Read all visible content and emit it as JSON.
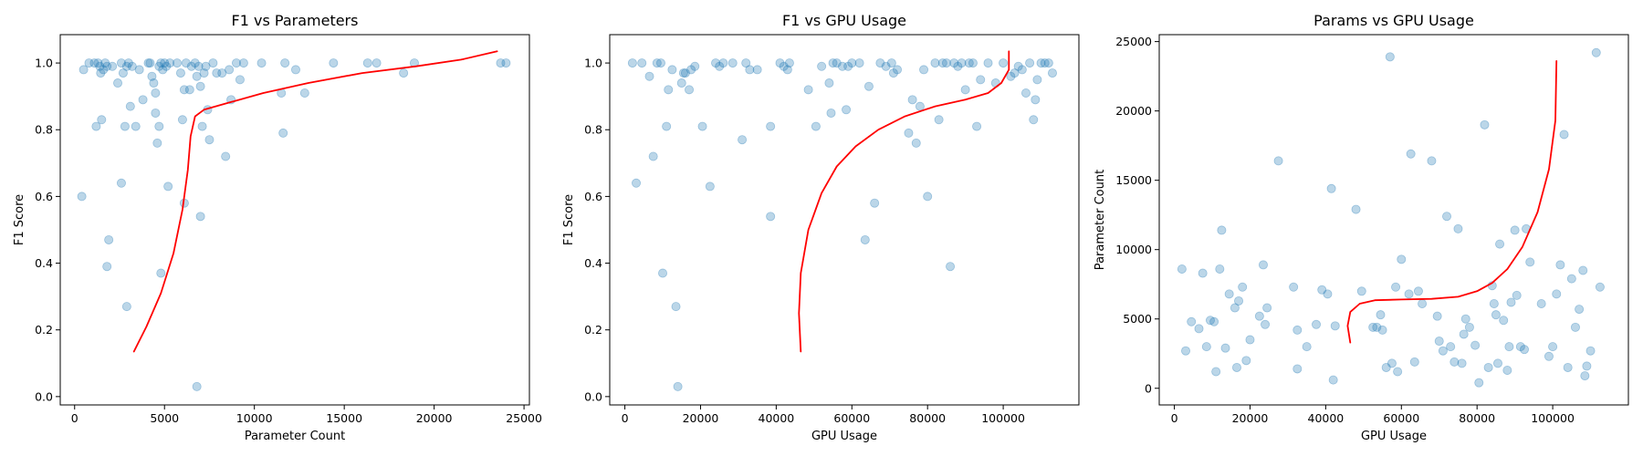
{
  "chart_data": [
    {
      "type": "scatter",
      "title": "F1 vs Parameters",
      "xlabel": "Parameter Count",
      "ylabel": "F1 Score",
      "xlim": [
        -800,
        25300
      ],
      "ylim": [
        -0.025,
        1.085
      ],
      "xticks": [
        0,
        5000,
        10000,
        15000,
        20000,
        25000
      ],
      "yticks": [
        0.0,
        0.2,
        0.4,
        0.6,
        0.8,
        1.0
      ],
      "xtick_labels": [
        "0",
        "5000",
        "10000",
        "15000",
        "20000",
        "25000"
      ],
      "ytick_labels": [
        "0.0",
        "0.2",
        "0.4",
        "0.6",
        "0.8",
        "1.0"
      ],
      "grid": false,
      "point_color": "#1f77b4",
      "point_alpha": 0.3,
      "trend_color": "#ff0000",
      "points": [
        [
          500,
          0.98
        ],
        [
          800,
          1.0
        ],
        [
          1100,
          1.0
        ],
        [
          1200,
          0.81
        ],
        [
          1300,
          1.0
        ],
        [
          1400,
          0.99
        ],
        [
          1450,
          0.97
        ],
        [
          1500,
          0.83
        ],
        [
          1600,
          0.98
        ],
        [
          1700,
          1.0
        ],
        [
          1800,
          0.99
        ],
        [
          2100,
          0.99
        ],
        [
          1900,
          0.47
        ],
        [
          1800,
          0.39
        ],
        [
          400,
          0.6
        ],
        [
          2400,
          0.94
        ],
        [
          2600,
          1.0
        ],
        [
          2700,
          0.97
        ],
        [
          2800,
          0.81
        ],
        [
          2900,
          0.99
        ],
        [
          3000,
          1.0
        ],
        [
          3100,
          0.87
        ],
        [
          3200,
          0.99
        ],
        [
          3400,
          0.81
        ],
        [
          3600,
          0.98
        ],
        [
          3800,
          0.89
        ],
        [
          2600,
          0.64
        ],
        [
          2900,
          0.27
        ],
        [
          4100,
          1.0
        ],
        [
          4200,
          1.0
        ],
        [
          4300,
          0.96
        ],
        [
          4400,
          0.94
        ],
        [
          4500,
          0.91
        ],
        [
          4500,
          0.85
        ],
        [
          4600,
          0.76
        ],
        [
          4700,
          0.81
        ],
        [
          4700,
          0.99
        ],
        [
          4800,
          1.0
        ],
        [
          4900,
          0.98
        ],
        [
          5000,
          1.0
        ],
        [
          5100,
          0.99
        ],
        [
          5300,
          1.0
        ],
        [
          4800,
          0.37
        ],
        [
          5200,
          0.63
        ],
        [
          5700,
          1.0
        ],
        [
          5900,
          0.97
        ],
        [
          6000,
          0.83
        ],
        [
          6100,
          0.92
        ],
        [
          6200,
          1.0
        ],
        [
          6400,
          0.92
        ],
        [
          6500,
          0.99
        ],
        [
          6700,
          1.0
        ],
        [
          6800,
          0.96
        ],
        [
          6900,
          0.99
        ],
        [
          7000,
          0.93
        ],
        [
          7100,
          0.81
        ],
        [
          7200,
          0.97
        ],
        [
          7300,
          0.99
        ],
        [
          7400,
          0.86
        ],
        [
          7500,
          0.77
        ],
        [
          6100,
          0.58
        ],
        [
          7000,
          0.54
        ],
        [
          6800,
          0.03
        ],
        [
          7700,
          1.0
        ],
        [
          7900,
          0.97
        ],
        [
          8200,
          0.97
        ],
        [
          8400,
          0.72
        ],
        [
          8600,
          0.98
        ],
        [
          8700,
          0.89
        ],
        [
          9000,
          1.0
        ],
        [
          9200,
          0.95
        ],
        [
          9400,
          1.0
        ],
        [
          10400,
          1.0
        ],
        [
          11500,
          0.91
        ],
        [
          11600,
          0.79
        ],
        [
          11700,
          1.0
        ],
        [
          12300,
          0.98
        ],
        [
          12800,
          0.91
        ],
        [
          14400,
          1.0
        ],
        [
          16300,
          1.0
        ],
        [
          16800,
          1.0
        ],
        [
          18300,
          0.97
        ],
        [
          18900,
          1.0
        ],
        [
          23700,
          1.0
        ],
        [
          24000,
          1.0
        ]
      ],
      "trend": [
        [
          3300,
          0.135
        ],
        [
          4000,
          0.21
        ],
        [
          4800,
          0.31
        ],
        [
          5500,
          0.43
        ],
        [
          6000,
          0.56
        ],
        [
          6300,
          0.68
        ],
        [
          6450,
          0.78
        ],
        [
          6700,
          0.84
        ],
        [
          7200,
          0.86
        ],
        [
          8500,
          0.88
        ],
        [
          10500,
          0.91
        ],
        [
          13000,
          0.94
        ],
        [
          16000,
          0.97
        ],
        [
          19000,
          0.99
        ],
        [
          21500,
          1.01
        ],
        [
          23500,
          1.035
        ]
      ]
    },
    {
      "type": "scatter",
      "title": "F1 vs GPU Usage",
      "xlabel": "GPU Usage",
      "ylabel": "F1 Score",
      "xlim": [
        -4000,
        120000
      ],
      "ylim": [
        -0.025,
        1.085
      ],
      "xticks": [
        0,
        20000,
        40000,
        60000,
        80000,
        100000
      ],
      "yticks": [
        0.0,
        0.2,
        0.4,
        0.6,
        0.8,
        1.0
      ],
      "xtick_labels": [
        "0",
        "20000",
        "40000",
        "60000",
        "80000",
        "100000"
      ],
      "ytick_labels": [
        "0.0",
        "0.2",
        "0.4",
        "0.6",
        "0.8",
        "1.0"
      ],
      "grid": false,
      "point_color": "#1f77b4",
      "point_alpha": 0.3,
      "trend_color": "#ff0000",
      "points": [
        [
          2000,
          1.0
        ],
        [
          3000,
          0.64
        ],
        [
          4500,
          1.0
        ],
        [
          6500,
          0.96
        ],
        [
          7500,
          0.72
        ],
        [
          8500,
          1.0
        ],
        [
          9500,
          1.0
        ],
        [
          10000,
          0.37
        ],
        [
          11000,
          0.81
        ],
        [
          11500,
          0.92
        ],
        [
          12500,
          0.98
        ],
        [
          13500,
          0.27
        ],
        [
          14000,
          0.03
        ],
        [
          15000,
          0.94
        ],
        [
          15500,
          0.97
        ],
        [
          16000,
          0.97
        ],
        [
          17000,
          0.92
        ],
        [
          17500,
          0.98
        ],
        [
          18500,
          0.99
        ],
        [
          20500,
          0.81
        ],
        [
          22500,
          0.63
        ],
        [
          24000,
          1.0
        ],
        [
          25000,
          0.99
        ],
        [
          26000,
          1.0
        ],
        [
          28500,
          1.0
        ],
        [
          31000,
          0.77
        ],
        [
          32000,
          1.0
        ],
        [
          33000,
          0.98
        ],
        [
          35000,
          0.98
        ],
        [
          38500,
          0.81
        ],
        [
          38500,
          0.54
        ],
        [
          41000,
          1.0
        ],
        [
          42000,
          0.99
        ],
        [
          43000,
          0.98
        ],
        [
          43500,
          1.0
        ],
        [
          48500,
          0.92
        ],
        [
          50500,
          0.81
        ],
        [
          52000,
          0.99
        ],
        [
          54000,
          0.94
        ],
        [
          54500,
          0.85
        ],
        [
          55000,
          1.0
        ],
        [
          56000,
          1.0
        ],
        [
          57500,
          0.99
        ],
        [
          58500,
          0.86
        ],
        [
          59000,
          0.99
        ],
        [
          60000,
          1.0
        ],
        [
          62000,
          1.0
        ],
        [
          63500,
          0.47
        ],
        [
          64500,
          0.93
        ],
        [
          66000,
          0.58
        ],
        [
          67500,
          1.0
        ],
        [
          69000,
          0.99
        ],
        [
          70500,
          1.0
        ],
        [
          71000,
          0.97
        ],
        [
          72000,
          0.98
        ],
        [
          75000,
          0.79
        ],
        [
          76000,
          0.89
        ],
        [
          77000,
          0.76
        ],
        [
          78000,
          0.87
        ],
        [
          79000,
          0.98
        ],
        [
          80000,
          0.6
        ],
        [
          82000,
          1.0
        ],
        [
          83000,
          0.83
        ],
        [
          84000,
          1.0
        ],
        [
          85000,
          1.0
        ],
        [
          86000,
          0.39
        ],
        [
          87000,
          1.0
        ],
        [
          88000,
          0.99
        ],
        [
          89000,
          1.0
        ],
        [
          90000,
          0.92
        ],
        [
          91000,
          1.0
        ],
        [
          92000,
          1.0
        ],
        [
          93000,
          0.81
        ],
        [
          94000,
          0.95
        ],
        [
          96000,
          1.0
        ],
        [
          98000,
          0.94
        ],
        [
          100000,
          1.0
        ],
        [
          102000,
          0.96
        ],
        [
          103000,
          0.97
        ],
        [
          104000,
          0.99
        ],
        [
          105000,
          0.98
        ],
        [
          106000,
          0.91
        ],
        [
          107000,
          1.0
        ],
        [
          108000,
          0.83
        ],
        [
          108500,
          0.89
        ],
        [
          109000,
          0.95
        ],
        [
          110000,
          1.0
        ],
        [
          111000,
          1.0
        ],
        [
          112000,
          1.0
        ],
        [
          113000,
          0.97
        ]
      ],
      "trend": [
        [
          46500,
          0.135
        ],
        [
          46000,
          0.25
        ],
        [
          46500,
          0.37
        ],
        [
          48500,
          0.5
        ],
        [
          52000,
          0.61
        ],
        [
          56000,
          0.69
        ],
        [
          61000,
          0.75
        ],
        [
          67000,
          0.8
        ],
        [
          74000,
          0.84
        ],
        [
          82000,
          0.87
        ],
        [
          90000,
          0.89
        ],
        [
          96000,
          0.91
        ],
        [
          99500,
          0.94
        ],
        [
          101500,
          0.98
        ],
        [
          101500,
          1.035
        ]
      ]
    },
    {
      "type": "scatter",
      "title": "Params vs GPU Usage",
      "xlabel": "GPU Usage",
      "ylabel": "Parameter Count",
      "xlim": [
        -4000,
        120000
      ],
      "ylim": [
        -1200,
        25500
      ],
      "xticks": [
        0,
        20000,
        40000,
        60000,
        80000,
        100000
      ],
      "yticks": [
        0,
        5000,
        10000,
        15000,
        20000,
        25000
      ],
      "xtick_labels": [
        "0",
        "20000",
        "40000",
        "60000",
        "80000",
        "100000"
      ],
      "ytick_labels": [
        "0",
        "5000",
        "10000",
        "15000",
        "20000",
        "25000"
      ],
      "grid": false,
      "point_color": "#1f77b4",
      "point_alpha": 0.3,
      "trend_color": "#ff0000",
      "points": [
        [
          2000,
          8600
        ],
        [
          3000,
          2700
        ],
        [
          4500,
          4800
        ],
        [
          6500,
          4300
        ],
        [
          7500,
          8300
        ],
        [
          8500,
          3000
        ],
        [
          9500,
          4900
        ],
        [
          10500,
          4800
        ],
        [
          11000,
          1200
        ],
        [
          12000,
          8600
        ],
        [
          12500,
          11400
        ],
        [
          13500,
          2900
        ],
        [
          14500,
          6800
        ],
        [
          16000,
          5800
        ],
        [
          16500,
          1500
        ],
        [
          17000,
          6300
        ],
        [
          18000,
          7300
        ],
        [
          19000,
          2000
        ],
        [
          20000,
          3500
        ],
        [
          22500,
          5200
        ],
        [
          23500,
          8900
        ],
        [
          24500,
          5800
        ],
        [
          24000,
          4600
        ],
        [
          27500,
          16400
        ],
        [
          31500,
          7300
        ],
        [
          32500,
          1400
        ],
        [
          32500,
          4200
        ],
        [
          35000,
          3000
        ],
        [
          37500,
          4600
        ],
        [
          39000,
          7100
        ],
        [
          40500,
          6800
        ],
        [
          41500,
          14400
        ],
        [
          42000,
          600
        ],
        [
          42500,
          4500
        ],
        [
          48000,
          12900
        ],
        [
          49500,
          7000
        ],
        [
          52500,
          4400
        ],
        [
          53500,
          4400
        ],
        [
          54500,
          5300
        ],
        [
          55000,
          4200
        ],
        [
          56000,
          1500
        ],
        [
          57000,
          23900
        ],
        [
          57500,
          1800
        ],
        [
          58500,
          7300
        ],
        [
          59000,
          1200
        ],
        [
          60000,
          9300
        ],
        [
          62000,
          6800
        ],
        [
          62500,
          16900
        ],
        [
          63500,
          1900
        ],
        [
          64500,
          7000
        ],
        [
          65500,
          6100
        ],
        [
          68000,
          16400
        ],
        [
          69500,
          5200
        ],
        [
          70000,
          3400
        ],
        [
          71000,
          2700
        ],
        [
          72000,
          12400
        ],
        [
          73000,
          3000
        ],
        [
          74000,
          1900
        ],
        [
          75000,
          11500
        ],
        [
          76000,
          1800
        ],
        [
          76500,
          3900
        ],
        [
          77000,
          5000
        ],
        [
          78000,
          4400
        ],
        [
          79500,
          3100
        ],
        [
          80500,
          400
        ],
        [
          82000,
          19000
        ],
        [
          83000,
          1500
        ],
        [
          84000,
          7400
        ],
        [
          84500,
          6100
        ],
        [
          85000,
          5300
        ],
        [
          85500,
          1800
        ],
        [
          86000,
          10400
        ],
        [
          87000,
          4900
        ],
        [
          88000,
          1300
        ],
        [
          88500,
          3000
        ],
        [
          89000,
          6200
        ],
        [
          90000,
          11400
        ],
        [
          90500,
          6700
        ],
        [
          91500,
          3000
        ],
        [
          92500,
          2800
        ],
        [
          93000,
          11500
        ],
        [
          94000,
          9100
        ],
        [
          97000,
          6100
        ],
        [
          99000,
          2300
        ],
        [
          100000,
          3000
        ],
        [
          101000,
          6800
        ],
        [
          102000,
          8900
        ],
        [
          103000,
          18300
        ],
        [
          104000,
          1500
        ],
        [
          105000,
          7900
        ],
        [
          106000,
          4400
        ],
        [
          107000,
          5700
        ],
        [
          108000,
          8500
        ],
        [
          108500,
          900
        ],
        [
          109000,
          1600
        ],
        [
          110000,
          2700
        ],
        [
          111500,
          24200
        ],
        [
          112500,
          7300
        ]
      ],
      "trend": [
        [
          46500,
          3300
        ],
        [
          45800,
          4500
        ],
        [
          46500,
          5500
        ],
        [
          49000,
          6100
        ],
        [
          53000,
          6350
        ],
        [
          60000,
          6400
        ],
        [
          68000,
          6450
        ],
        [
          75000,
          6600
        ],
        [
          80000,
          7000
        ],
        [
          84000,
          7600
        ],
        [
          88000,
          8600
        ],
        [
          92000,
          10200
        ],
        [
          96000,
          12700
        ],
        [
          99000,
          15800
        ],
        [
          100700,
          19300
        ],
        [
          101000,
          23600
        ]
      ]
    }
  ]
}
